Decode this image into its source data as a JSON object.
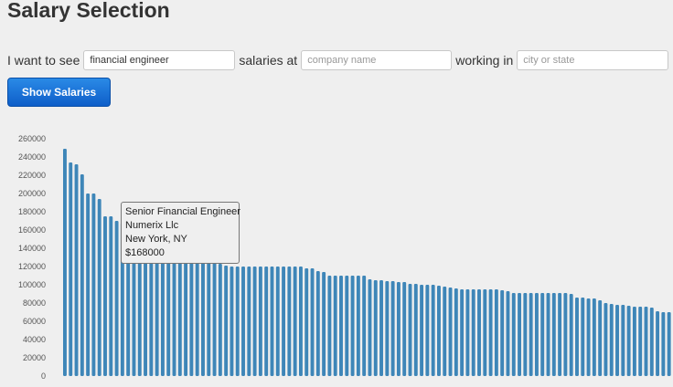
{
  "header": {
    "title": "Salary Selection"
  },
  "form": {
    "prefix": "I want to see",
    "job_value": "financial engineer",
    "middle": "salaries at",
    "company_placeholder": "company name",
    "working_in": "working in",
    "location_placeholder": "city or state",
    "suffix": ".",
    "button_label": "Show Salaries"
  },
  "chart_data": {
    "type": "bar",
    "ylim": [
      0,
      280000
    ],
    "ticks": [
      0,
      20000,
      40000,
      60000,
      80000,
      100000,
      120000,
      140000,
      160000,
      180000,
      200000,
      220000,
      240000,
      260000
    ],
    "tick_labels": [
      "0",
      "20000",
      "40000",
      "60000",
      "80000",
      "100000",
      "120000",
      "140000",
      "160000",
      "180000",
      "200000",
      "220000",
      "240000",
      "260000"
    ],
    "bar_color": "#3e86b8",
    "values": [
      249000,
      234000,
      232000,
      221000,
      200000,
      200000,
      194000,
      175000,
      175000,
      170000,
      168000,
      165000,
      158000,
      151000,
      148000,
      145000,
      140000,
      138000,
      136000,
      135000,
      134000,
      134000,
      133000,
      130000,
      130000,
      130000,
      127000,
      123000,
      121000,
      120000,
      120000,
      120000,
      120000,
      120000,
      120000,
      120000,
      120000,
      120000,
      120000,
      120000,
      120000,
      120000,
      118000,
      118000,
      115000,
      114000,
      110000,
      110000,
      110000,
      110000,
      110000,
      110000,
      110000,
      106000,
      105000,
      105000,
      104000,
      104000,
      103000,
      103000,
      101000,
      101000,
      100000,
      100000,
      100000,
      99000,
      98000,
      97000,
      96000,
      95000,
      95000,
      95000,
      95000,
      95000,
      95000,
      95000,
      94000,
      93000,
      91000,
      91000,
      91000,
      91000,
      91000,
      91000,
      91000,
      91000,
      91000,
      91000,
      90000,
      86000,
      86000,
      85000,
      85000,
      83000,
      80000,
      79000,
      78000,
      78000,
      77000,
      76000,
      76000,
      76000,
      75000,
      71000,
      70000,
      70000
    ]
  },
  "tooltip": {
    "title": "Senior Financial Engineer",
    "company": "Numerix Llc",
    "location": "New York, NY",
    "salary": "$168000"
  }
}
